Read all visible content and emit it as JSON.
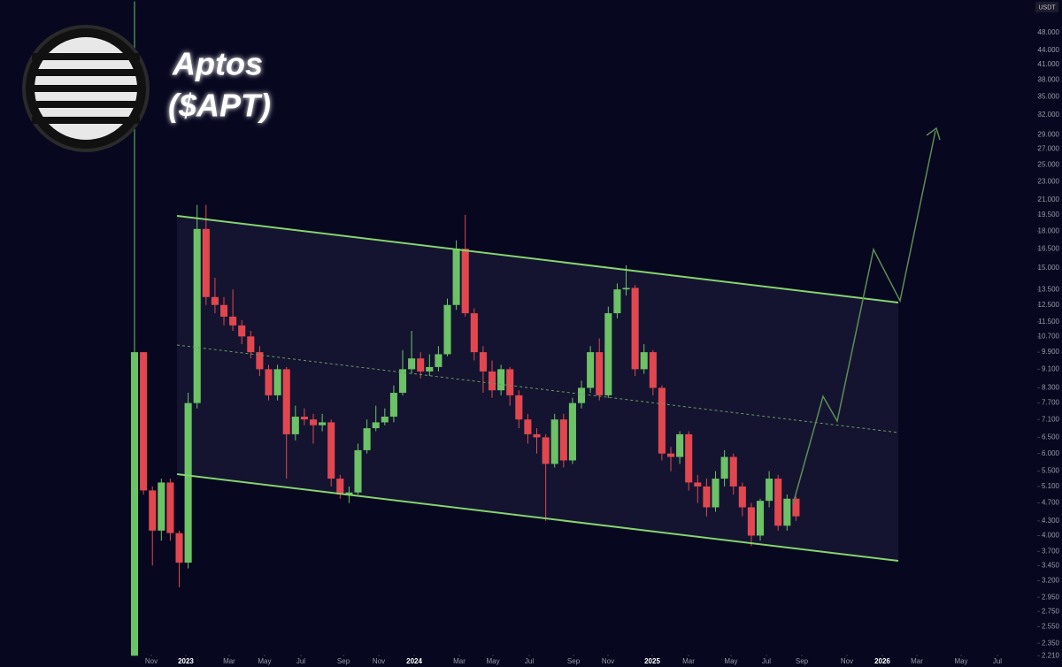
{
  "chart_data": {
    "type": "candlestick",
    "title": "Aptos",
    "subtitle": "($APT)",
    "currency": "USDT",
    "log_scale": true,
    "up_color": "#6cc266",
    "down_color": "#e2474f",
    "open": [
      2.21,
      9.9,
      5.0,
      4.1,
      5.2,
      4.05,
      3.5,
      7.7,
      18.2,
      13.0,
      12.5,
      11.8,
      11.3,
      10.7,
      9.9,
      9.1,
      8.0,
      9.1,
      6.6,
      7.2,
      7.1,
      6.9,
      7.0,
      5.3,
      4.9,
      4.95,
      6.1,
      6.8,
      7.0,
      7.2,
      8.1,
      9.1,
      9.6,
      9.0,
      9.2,
      9.8,
      12.5,
      16.5,
      12.0,
      9.9,
      9.0,
      8.2,
      9.1,
      8.0,
      7.1,
      6.6,
      6.5,
      5.7,
      7.1,
      5.8,
      7.7,
      8.3,
      9.9,
      8.0,
      12.0,
      13.5,
      13.6,
      9.1,
      9.9,
      8.3,
      6.0,
      5.9,
      6.6,
      5.2,
      5.1,
      4.6,
      5.3,
      5.9,
      5.1,
      4.6,
      4.0,
      4.75,
      5.3,
      4.2,
      4.8
    ],
    "high": [
      56,
      9.9,
      5.1,
      5.3,
      5.3,
      4.1,
      8.1,
      20.5,
      20.5,
      14.3,
      13.0,
      13.5,
      11.6,
      11.0,
      10.2,
      9.3,
      9.3,
      9.2,
      7.6,
      7.5,
      7.3,
      7.3,
      7.1,
      5.4,
      5.1,
      6.3,
      7.1,
      7.6,
      7.5,
      8.4,
      10.0,
      11.0,
      9.9,
      9.8,
      10.2,
      12.9,
      17.2,
      19.5,
      12.3,
      10.2,
      9.5,
      9.3,
      9.2,
      8.2,
      7.3,
      6.8,
      6.6,
      7.3,
      7.3,
      7.9,
      8.6,
      10.2,
      10.6,
      12.4,
      13.9,
      15.2,
      13.8,
      10.3,
      10.0,
      8.4,
      6.2,
      6.7,
      6.7,
      5.4,
      5.3,
      5.5,
      6.1,
      6.0,
      5.2,
      4.7,
      4.8,
      5.5,
      5.4,
      4.9,
      4.85
    ],
    "low": [
      2.21,
      4.9,
      3.45,
      3.9,
      3.9,
      3.1,
      3.4,
      7.5,
      12.5,
      12.0,
      11.3,
      11.0,
      10.3,
      9.6,
      8.8,
      7.8,
      7.8,
      5.3,
      6.4,
      6.9,
      6.3,
      6.7,
      5.1,
      4.8,
      4.7,
      4.9,
      6.0,
      6.7,
      6.9,
      7.0,
      8.0,
      8.9,
      8.7,
      8.8,
      9.0,
      9.7,
      12.2,
      11.8,
      9.5,
      8.1,
      7.9,
      8.0,
      7.6,
      6.8,
      6.3,
      6.0,
      4.3,
      5.6,
      5.6,
      5.7,
      7.5,
      8.1,
      7.8,
      7.9,
      11.7,
      13.1,
      8.8,
      8.9,
      8.0,
      5.8,
      5.5,
      5.7,
      5.0,
      4.7,
      4.4,
      4.5,
      5.1,
      4.9,
      4.4,
      3.8,
      3.9,
      4.6,
      4.1,
      4.1,
      4.3
    ],
    "close": [
      9.9,
      5.0,
      4.1,
      5.2,
      4.05,
      3.5,
      7.7,
      18.2,
      13.0,
      12.5,
      11.8,
      11.3,
      10.7,
      9.9,
      9.1,
      8.0,
      9.1,
      6.6,
      7.2,
      7.1,
      6.9,
      7.0,
      5.3,
      4.9,
      4.95,
      6.1,
      6.8,
      7.0,
      7.2,
      8.1,
      9.1,
      9.6,
      9.0,
      9.2,
      9.8,
      12.5,
      16.5,
      12.0,
      9.9,
      9.0,
      8.2,
      9.1,
      8.0,
      7.1,
      6.6,
      6.5,
      5.7,
      7.1,
      5.8,
      7.7,
      8.3,
      9.9,
      8.0,
      12.0,
      13.5,
      13.6,
      9.1,
      9.9,
      8.3,
      6.0,
      5.9,
      6.6,
      5.2,
      5.1,
      4.6,
      5.3,
      5.9,
      5.1,
      4.6,
      4.0,
      4.75,
      5.3,
      4.2,
      4.8,
      4.4
    ],
    "xlim": [
      -15.05,
      100.79
    ],
    "xticks": [
      {
        "value": 1.88,
        "label": "Nov"
      },
      {
        "value": 5.74,
        "label": "2023"
      },
      {
        "value": 10.59,
        "label": "Mar"
      },
      {
        "value": 14.55,
        "label": "May"
      },
      {
        "value": 18.61,
        "label": "Jul"
      },
      {
        "value": 23.37,
        "label": "Sep"
      },
      {
        "value": 27.33,
        "label": "Nov"
      },
      {
        "value": 31.29,
        "label": "2024"
      },
      {
        "value": 36.34,
        "label": "Mar"
      },
      {
        "value": 40.1,
        "label": "May"
      },
      {
        "value": 44.16,
        "label": "Jul"
      },
      {
        "value": 49.11,
        "label": "Sep"
      },
      {
        "value": 52.97,
        "label": "Nov"
      },
      {
        "value": 57.92,
        "label": "2025"
      },
      {
        "value": 61.98,
        "label": "Mar"
      },
      {
        "value": 66.73,
        "label": "May"
      },
      {
        "value": 70.69,
        "label": "Jul"
      },
      {
        "value": 74.65,
        "label": "Sep"
      },
      {
        "value": 79.7,
        "label": "Nov"
      },
      {
        "value": 83.66,
        "label": "2026"
      },
      {
        "value": 87.52,
        "label": "Mar"
      },
      {
        "value": 92.48,
        "label": "May"
      },
      {
        "value": 96.53,
        "label": "Jul"
      }
    ],
    "ylim": [
      2.09,
      56.4
    ],
    "yticks": [
      {
        "value": 48,
        "label": "48.000"
      },
      {
        "value": 44,
        "label": "44.000"
      },
      {
        "value": 41,
        "label": "41.000"
      },
      {
        "value": 38,
        "label": "38.000"
      },
      {
        "value": 35,
        "label": "35.000"
      },
      {
        "value": 32,
        "label": "32.000"
      },
      {
        "value": 29,
        "label": "29.000"
      },
      {
        "value": 27,
        "label": "27.000"
      },
      {
        "value": 25,
        "label": "25.000"
      },
      {
        "value": 23,
        "label": "23.000"
      },
      {
        "value": 21,
        "label": "21.000"
      },
      {
        "value": 19.5,
        "label": "19.500"
      },
      {
        "value": 18,
        "label": "18.000"
      },
      {
        "value": 16.5,
        "label": "16.500"
      },
      {
        "value": 15,
        "label": "15.000"
      },
      {
        "value": 13.5,
        "label": "13.500"
      },
      {
        "value": 12.5,
        "label": "12.500"
      },
      {
        "value": 11.5,
        "label": "11.500"
      },
      {
        "value": 10.7,
        "label": "10.700"
      },
      {
        "value": 9.9,
        "label": "9.900"
      },
      {
        "value": 9.1,
        "label": "9.100"
      },
      {
        "value": 8.3,
        "label": "8.300"
      },
      {
        "value": 7.7,
        "label": "7.700"
      },
      {
        "value": 7.1,
        "label": "7.100"
      },
      {
        "value": 6.5,
        "label": "6.500"
      },
      {
        "value": 6,
        "label": "6.000"
      },
      {
        "value": 5.5,
        "label": "5.500"
      },
      {
        "value": 5.1,
        "label": "5.100"
      },
      {
        "value": 4.7,
        "label": "4.700"
      },
      {
        "value": 4.3,
        "label": "4.300"
      },
      {
        "value": 4,
        "label": "4.000"
      },
      {
        "value": 3.7,
        "label": "3.700"
      },
      {
        "value": 3.45,
        "label": "3.450"
      },
      {
        "value": 3.2,
        "label": "3.200"
      },
      {
        "value": 2.95,
        "label": "2.950"
      },
      {
        "value": 2.75,
        "label": "2.750"
      },
      {
        "value": 2.55,
        "label": "2.550"
      },
      {
        "value": 2.35,
        "label": "2.350"
      },
      {
        "value": 2.21,
        "label": "2.210"
      }
    ],
    "grid": false
  }
}
